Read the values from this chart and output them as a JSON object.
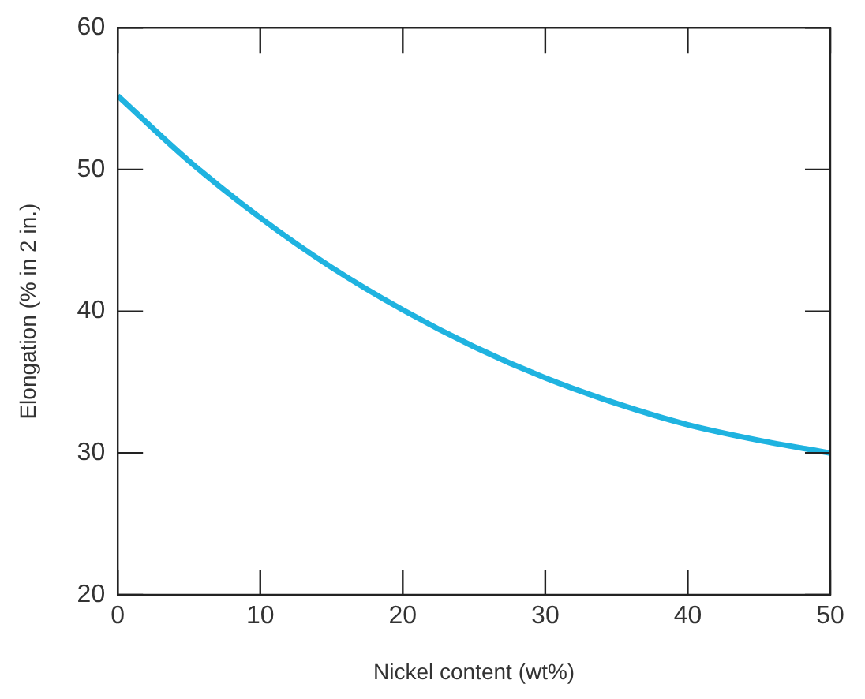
{
  "chart_data": {
    "type": "line",
    "xlabel": "Nickel content (wt%)",
    "ylabel": "Elongation (% in 2 in.)",
    "x": [
      0,
      5,
      10,
      15,
      20,
      25,
      30,
      35,
      40,
      45,
      50
    ],
    "series": [
      {
        "color": "#1fb3e0",
        "values": [
          55.2,
          50.6,
          46.6,
          43.1,
          40.1,
          37.5,
          35.3,
          33.5,
          32.0,
          30.9,
          30.0
        ]
      }
    ],
    "xlim": [
      0,
      50
    ],
    "xticks": [
      0,
      10,
      20,
      30,
      40,
      50
    ],
    "ylim": [
      20,
      60
    ],
    "yticks": [
      20,
      30,
      40,
      50,
      60
    ],
    "grid": false,
    "legend": false,
    "marker": "none",
    "line_style": "solid"
  }
}
